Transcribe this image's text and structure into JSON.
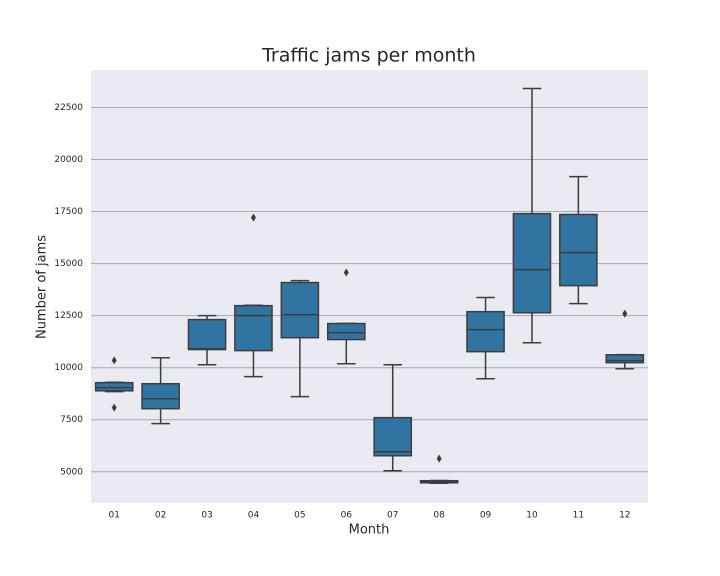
{
  "chart_data": {
    "type": "box",
    "title": "Traffic jams per month",
    "x_label": "Month",
    "y_label": "Number of jams",
    "categories": [
      "01",
      "02",
      "03",
      "04",
      "05",
      "06",
      "07",
      "08",
      "09",
      "10",
      "11",
      "12"
    ],
    "color": "#3274a1",
    "boxes": [
      {
        "min": 8850,
        "q1": 8890,
        "median": 9040,
        "q3": 9280,
        "max": 9300,
        "outliers": [
          10350,
          8080
        ]
      },
      {
        "min": 7310,
        "q1": 8030,
        "median": 8510,
        "q3": 9230,
        "max": 10480,
        "outliers": []
      },
      {
        "min": 10140,
        "q1": 10870,
        "median": 10910,
        "q3": 12310,
        "max": 12500,
        "outliers": []
      },
      {
        "min": 9570,
        "q1": 10820,
        "median": 12500,
        "q3": 12980,
        "max": 13000,
        "outliers": [
          17210
        ]
      },
      {
        "min": 8610,
        "q1": 11440,
        "median": 12550,
        "q3": 14090,
        "max": 14180,
        "outliers": []
      },
      {
        "min": 10190,
        "q1": 11350,
        "median": 11680,
        "q3": 12120,
        "max": 12130,
        "outliers": [
          14570
        ]
      },
      {
        "min": 5050,
        "q1": 5770,
        "median": 5960,
        "q3": 7600,
        "max": 10140,
        "outliers": []
      },
      {
        "min": 4450,
        "q1": 4470,
        "median": 4520,
        "q3": 4570,
        "max": 4580,
        "outliers": [
          5630
        ]
      },
      {
        "min": 9470,
        "q1": 10770,
        "median": 11830,
        "q3": 12690,
        "max": 13370,
        "outliers": []
      },
      {
        "min": 11200,
        "q1": 12640,
        "median": 14710,
        "q3": 17400,
        "max": 23410,
        "outliers": []
      },
      {
        "min": 13080,
        "q1": 13940,
        "median": 15530,
        "q3": 17360,
        "max": 19180,
        "outliers": []
      },
      {
        "min": 9950,
        "q1": 10240,
        "median": 10340,
        "q3": 10620,
        "max": 10630,
        "outliers": [
          12600
        ]
      }
    ],
    "ylim": [
      3500,
      24300
    ],
    "yticks": [
      5000,
      7500,
      10000,
      12500,
      15000,
      17500,
      20000,
      22500
    ],
    "grid": true
  }
}
